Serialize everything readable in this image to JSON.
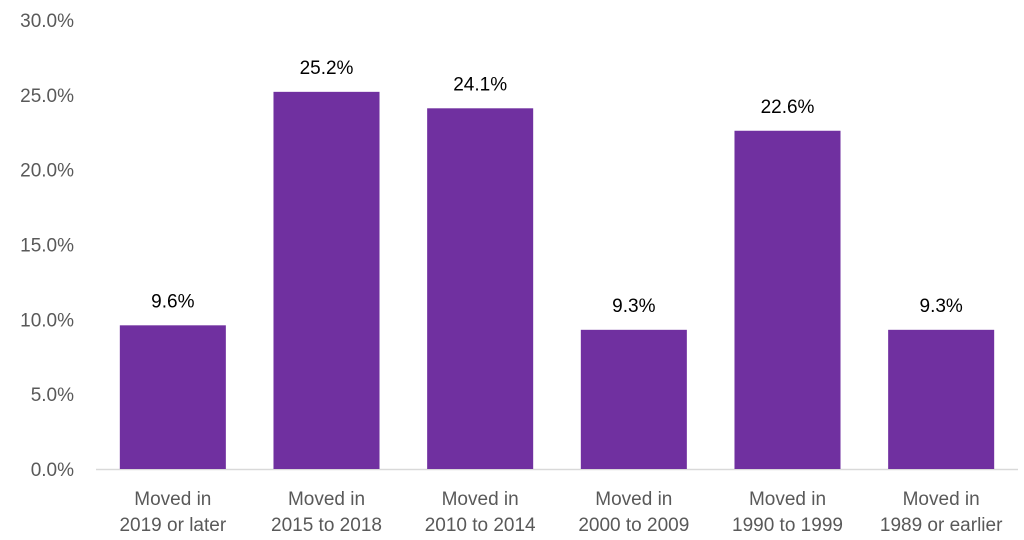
{
  "chart_data": {
    "type": "bar",
    "title": "",
    "xlabel": "",
    "ylabel": "",
    "categories": [
      [
        "Moved in",
        "2019 or later"
      ],
      [
        "Moved in",
        "2015 to 2018"
      ],
      [
        "Moved in",
        "2010 to 2014"
      ],
      [
        "Moved in",
        "2000 to 2009"
      ],
      [
        "Moved in",
        "1990 to 1999"
      ],
      [
        "Moved in",
        "1989 or earlier"
      ]
    ],
    "values": [
      9.6,
      25.2,
      24.1,
      9.3,
      22.6,
      9.3
    ],
    "data_labels": [
      "9.6%",
      "25.2%",
      "24.1%",
      "9.3%",
      "22.6%",
      "9.3%"
    ],
    "ylim": [
      0,
      30
    ],
    "yticks": [
      0,
      5,
      10,
      15,
      20,
      25,
      30
    ],
    "ytick_labels": [
      "0.0%",
      "5.0%",
      "10.0%",
      "15.0%",
      "20.0%",
      "25.0%",
      "30.0%"
    ],
    "grid": false,
    "legend": "none",
    "colors": {
      "bar": "#7030A0",
      "axis": "#D9D9D9",
      "tick_text": "#595959",
      "data_label_text": "#000000"
    }
  }
}
